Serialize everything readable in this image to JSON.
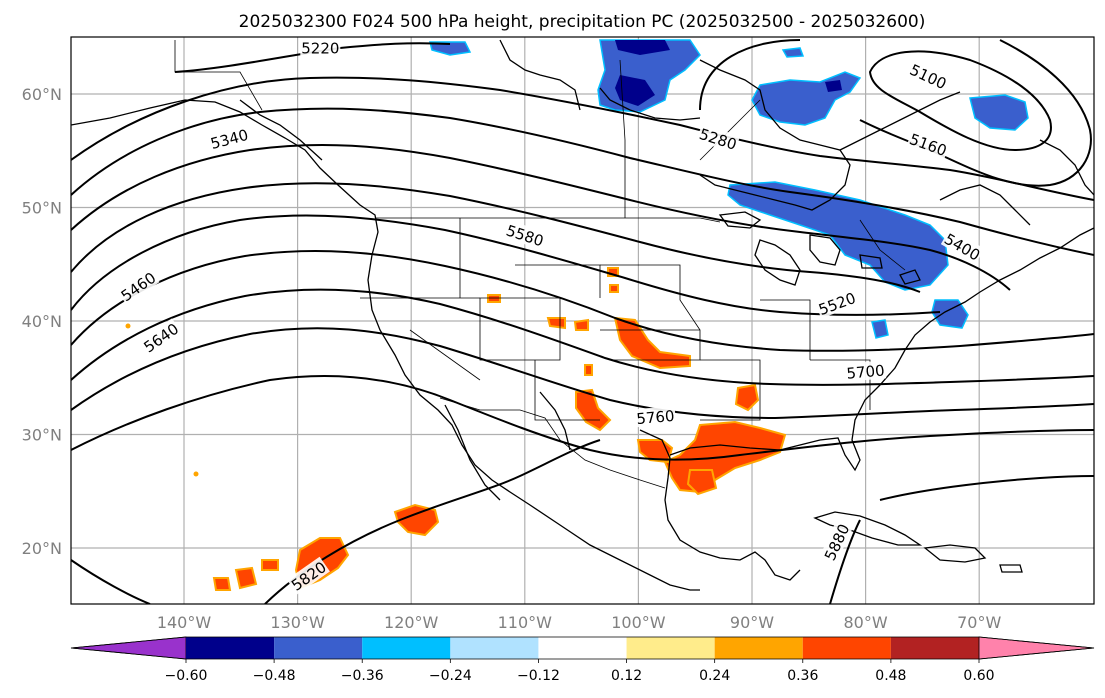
{
  "title": "2025032300 F024 500 hPa height, precipitation PC (2025032500 - 2025032600)",
  "map": {
    "lat_ticks": [
      {
        "label": "60°N",
        "lat": 60
      },
      {
        "label": "50°N",
        "lat": 50
      },
      {
        "label": "40°N",
        "lat": 40
      },
      {
        "label": "30°N",
        "lat": 30
      },
      {
        "label": "20°N",
        "lat": 20
      }
    ],
    "lon_ticks": [
      {
        "label": "140°W",
        "lon": -140
      },
      {
        "label": "130°W",
        "lon": -130
      },
      {
        "label": "120°W",
        "lon": -120
      },
      {
        "label": "110°W",
        "lon": -110
      },
      {
        "label": "100°W",
        "lon": -100
      },
      {
        "label": "90°W",
        "lon": -90
      },
      {
        "label": "80°W",
        "lon": -80
      },
      {
        "label": "70°W",
        "lon": -70
      }
    ],
    "contour_labels": [
      {
        "text": "5220",
        "lon": -128,
        "lat": 64.0,
        "rot": 0
      },
      {
        "text": "5100",
        "lon": -74.5,
        "lat": 61.5,
        "rot": 25
      },
      {
        "text": "5160",
        "lon": -74.5,
        "lat": 55.5,
        "rot": 20
      },
      {
        "text": "5280",
        "lon": -93,
        "lat": 56.0,
        "rot": 18
      },
      {
        "text": "5340",
        "lon": -136,
        "lat": 56.0,
        "rot": -15
      },
      {
        "text": "5400",
        "lon": -71.5,
        "lat": 46.5,
        "rot": 30
      },
      {
        "text": "5460",
        "lon": -144,
        "lat": 43.0,
        "rot": -35
      },
      {
        "text": "5520",
        "lon": -82.5,
        "lat": 41.5,
        "rot": -20
      },
      {
        "text": "5580",
        "lon": -110,
        "lat": 47.5,
        "rot": 18
      },
      {
        "text": "5640",
        "lon": -142,
        "lat": 38.5,
        "rot": -35
      },
      {
        "text": "5700",
        "lon": -80,
        "lat": 35.5,
        "rot": -5
      },
      {
        "text": "5760",
        "lon": -98.5,
        "lat": 31.5,
        "rot": -5
      },
      {
        "text": "5820",
        "lon": -129,
        "lat": 17.5,
        "rot": -35
      },
      {
        "text": "5880",
        "lon": -82.5,
        "lat": 20.5,
        "rot": -65
      }
    ]
  },
  "colorbar": {
    "colors": [
      "#9932cc",
      "#00008b",
      "#3a5fcd",
      "#00bfff",
      "#b0e2ff",
      "#ffffff",
      "#ffec8b",
      "#ffa500",
      "#ff4500",
      "#b22222",
      "#ff82ab"
    ],
    "ticks": [
      "−0.60",
      "−0.48",
      "−0.36",
      "−0.24",
      "−0.12",
      "0.12",
      "0.24",
      "0.36",
      "0.48",
      "0.60"
    ],
    "values": [
      -0.6,
      -0.48,
      -0.36,
      -0.24,
      -0.12,
      0.12,
      0.24,
      0.36,
      0.48,
      0.6
    ]
  }
}
